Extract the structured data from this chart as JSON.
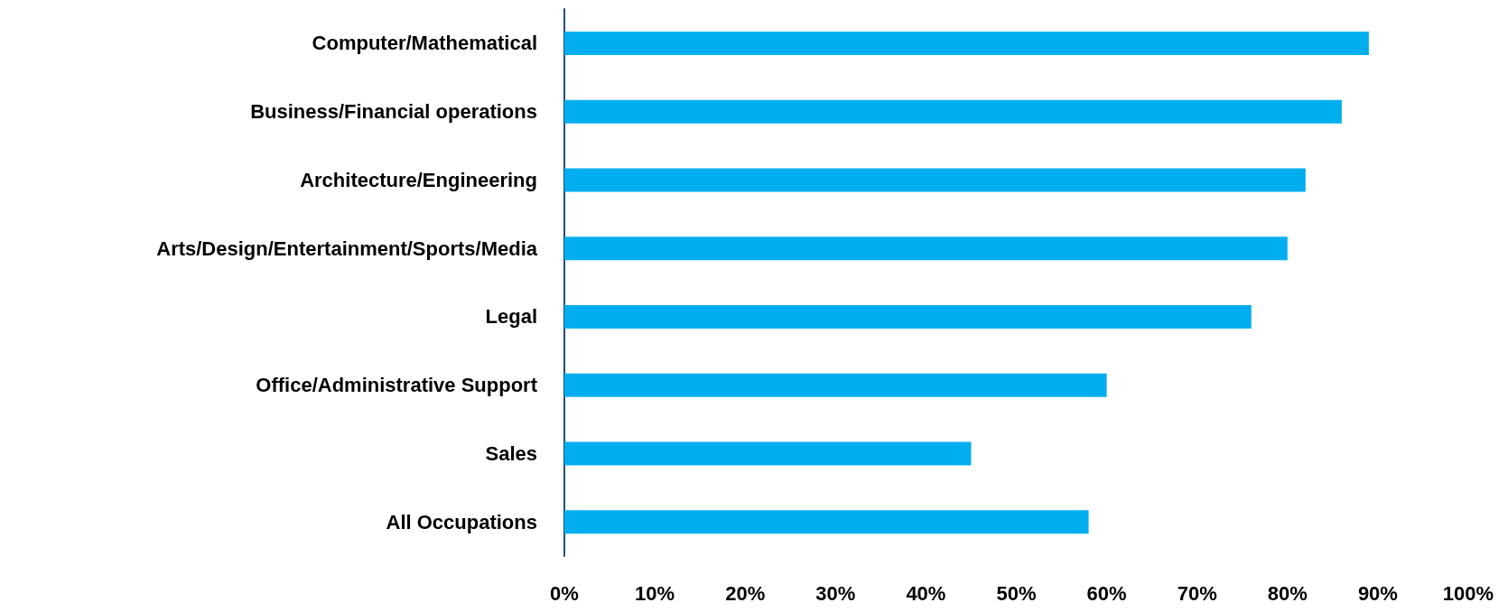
{
  "chart_data": {
    "type": "bar",
    "orientation": "horizontal",
    "categories": [
      "Computer/Mathematical",
      "Business/Financial operations",
      "Architecture/Engineering",
      "Arts/Design/Entertainment/Sports/Media",
      "Legal",
      "Office/Administrative Support",
      "Sales",
      "All Occupations"
    ],
    "values": [
      89,
      86,
      82,
      80,
      76,
      60,
      45,
      58
    ],
    "color": "#00aeef",
    "xlim": [
      0,
      100
    ],
    "xticks": [
      {
        "value": 0,
        "label": "0%"
      },
      {
        "value": 10,
        "label": "10%"
      },
      {
        "value": 20,
        "label": "20%"
      },
      {
        "value": 30,
        "label": "30%"
      },
      {
        "value": 40,
        "label": "40%"
      },
      {
        "value": 50,
        "label": "50%"
      },
      {
        "value": 60,
        "label": "60%"
      },
      {
        "value": 70,
        "label": "70%"
      },
      {
        "value": 80,
        "label": "80%"
      },
      {
        "value": 90,
        "label": "90%"
      },
      {
        "value": 100,
        "label": "100%"
      }
    ],
    "grid": false
  }
}
